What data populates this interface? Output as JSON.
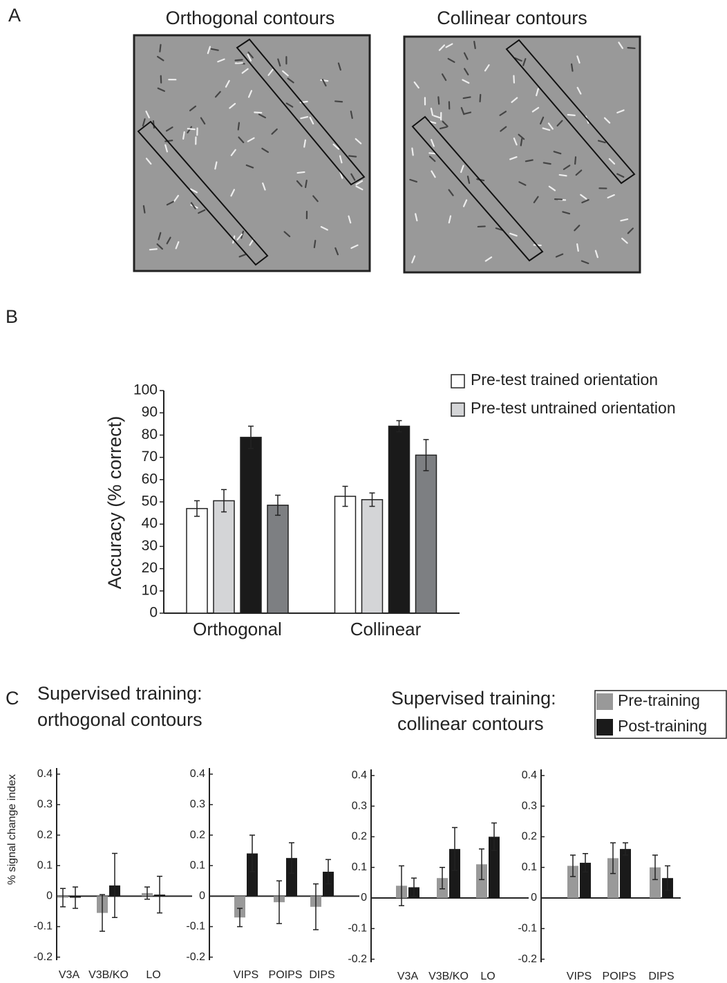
{
  "panel_labels": [
    "A",
    "B",
    "C"
  ],
  "stimuli": {
    "titles": [
      "Orthogonal contours",
      "Collinear contours"
    ]
  },
  "panel_c_groups": [
    {
      "title": [
        "Supervised training:",
        "orthogonal contours"
      ]
    },
    {
      "title": [
        "Supervised training:",
        "collinear contours"
      ]
    }
  ],
  "panel_c_legend": [
    {
      "name": "Pre-training",
      "color": "#999999"
    },
    {
      "name": "Post-training",
      "color": "#1a1a1a"
    }
  ],
  "chart_data": [
    {
      "type": "bar",
      "y_label": "Accuracy (% correct)",
      "categories": [
        "Orthogonal",
        "Collinear"
      ],
      "series": [
        {
          "name": "Pre-test trained orientation",
          "color": "#ffffff",
          "values": [
            47,
            52.5
          ],
          "errors": [
            3.5,
            4.5
          ]
        },
        {
          "name": "Pre-test untrained orientation",
          "color": "#d4d5d7",
          "values": [
            50.5,
            51
          ],
          "errors": [
            5,
            3
          ]
        },
        {
          "color": "#1a1a1a",
          "values": [
            79,
            84
          ],
          "errors": [
            5,
            2.5
          ]
        },
        {
          "color": "#7d7f82",
          "values": [
            48.5,
            71
          ],
          "errors": [
            4.5,
            7
          ]
        }
      ],
      "ylim": [
        0,
        100
      ],
      "yticks": [
        0,
        10,
        20,
        30,
        40,
        50,
        60,
        70,
        80,
        90,
        100
      ]
    },
    {
      "type": "bar",
      "y_label": "% signal change index",
      "categories": [
        "V3A",
        "V3B/KO",
        "LO"
      ],
      "series": [
        {
          "color": "#999999",
          "values": [
            -0.005,
            -0.055,
            0.01
          ],
          "errors": [
            0.03,
            0.06,
            0.02
          ]
        },
        {
          "color": "#1a1a1a",
          "values": [
            -0.005,
            0.035,
            0.005
          ],
          "errors": [
            0.035,
            0.105,
            0.06
          ]
        }
      ],
      "ylim": [
        -0.21,
        0.42
      ],
      "yticks": [
        -0.2,
        -0.1,
        0,
        0.1,
        0.2,
        0.3,
        0.4
      ]
    },
    {
      "type": "bar",
      "categories": [
        "VIPS",
        "POIPS",
        "DIPS"
      ],
      "series": [
        {
          "color": "#999999",
          "values": [
            -0.07,
            -0.02,
            -0.035
          ],
          "errors": [
            0.03,
            0.07,
            0.075
          ]
        },
        {
          "color": "#1a1a1a",
          "values": [
            0.14,
            0.125,
            0.08
          ],
          "errors": [
            0.06,
            0.05,
            0.04
          ]
        }
      ],
      "ylim": [
        -0.21,
        0.42
      ],
      "yticks": [
        -0.2,
        -0.1,
        0,
        0.1,
        0.2,
        0.3,
        0.4
      ]
    },
    {
      "type": "bar",
      "categories": [
        "V3A",
        "V3B/KO",
        "LO"
      ],
      "series": [
        {
          "color": "#999999",
          "values": [
            0.04,
            0.065,
            0.11
          ],
          "errors": [
            0.065,
            0.035,
            0.05
          ]
        },
        {
          "color": "#1a1a1a",
          "values": [
            0.035,
            0.16,
            0.2
          ],
          "errors": [
            0.03,
            0.07,
            0.045
          ]
        }
      ],
      "ylim": [
        -0.21,
        0.42
      ],
      "yticks": [
        -0.2,
        -0.1,
        0,
        0.1,
        0.2,
        0.3,
        0.4
      ]
    },
    {
      "type": "bar",
      "categories": [
        "VIPS",
        "POIPS",
        "DIPS"
      ],
      "series": [
        {
          "color": "#999999",
          "values": [
            0.105,
            0.13,
            0.1
          ],
          "errors": [
            0.035,
            0.05,
            0.04
          ]
        },
        {
          "color": "#1a1a1a",
          "values": [
            0.115,
            0.16,
            0.065
          ],
          "errors": [
            0.03,
            0.02,
            0.04
          ]
        }
      ],
      "ylim": [
        -0.21,
        0.42
      ],
      "yticks": [
        -0.2,
        -0.1,
        0,
        0.1,
        0.2,
        0.3,
        0.4
      ]
    }
  ]
}
